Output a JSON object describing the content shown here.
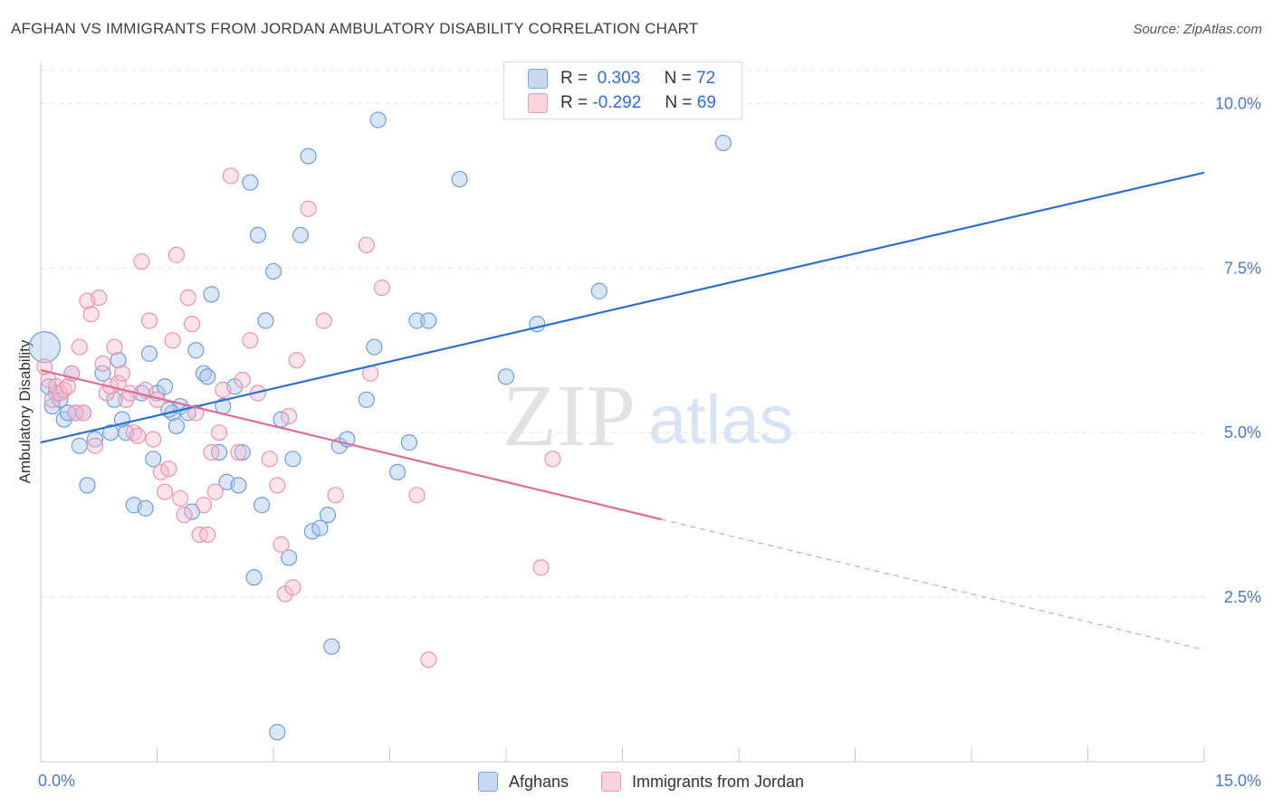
{
  "title": "AFGHAN VS IMMIGRANTS FROM JORDAN AMBULATORY DISABILITY CORRELATION CHART",
  "source": "Source: ZipAtlas.com",
  "watermark": {
    "zip": "ZIP",
    "atlas": "atlas"
  },
  "legend": {
    "r_label": "R =",
    "n_label": "N =",
    "rows": [
      {
        "r": "0.303",
        "n": "72",
        "color": "#aac8f0"
      },
      {
        "r": "-0.292",
        "n": "69",
        "color": "#f7b8cb"
      }
    ]
  },
  "bottom_legend": [
    "Afghans",
    "Immigrants from Jordan"
  ],
  "chart_data": {
    "type": "scatter",
    "title": "AFGHAN VS IMMIGRANTS FROM JORDAN AMBULATORY DISABILITY CORRELATION CHART",
    "xlabel": "",
    "ylabel": "Ambulatory Disability",
    "xlim": [
      0,
      15
    ],
    "ylim": [
      0,
      10.5
    ],
    "x_tick_labels": [
      "0.0%",
      "15.0%"
    ],
    "y_ticks": [
      2.5,
      5.0,
      7.5,
      10.0
    ],
    "y_tick_labels": [
      "2.5%",
      "5.0%",
      "7.5%",
      "10.0%"
    ],
    "grid": "horizontal dashed",
    "legend_position": "top-center",
    "colors": {
      "afghans": "#2d6ecf",
      "jordan": "#e06b97",
      "afghans_fill": "#aac8f0",
      "jordan_fill": "#f7b8cb"
    },
    "series": [
      {
        "name": "Afghans",
        "R": 0.303,
        "N": 72,
        "trend": {
          "x": [
            0,
            15
          ],
          "y": [
            4.85,
            8.95
          ],
          "dashed_from": null
        },
        "points": [
          [
            0.05,
            6.3
          ],
          [
            0.1,
            5.7
          ],
          [
            0.15,
            5.4
          ],
          [
            0.2,
            5.6
          ],
          [
            0.3,
            5.2
          ],
          [
            0.35,
            5.3
          ],
          [
            0.4,
            5.9
          ],
          [
            0.45,
            5.3
          ],
          [
            0.5,
            4.8
          ],
          [
            0.55,
            5.3
          ],
          [
            0.6,
            4.2
          ],
          [
            0.7,
            4.9
          ],
          [
            0.8,
            5.9
          ],
          [
            0.9,
            5.0
          ],
          [
            0.95,
            5.5
          ],
          [
            1.0,
            6.1
          ],
          [
            1.05,
            5.2
          ],
          [
            1.1,
            5.0
          ],
          [
            1.2,
            3.9
          ],
          [
            1.3,
            5.6
          ],
          [
            1.35,
            3.85
          ],
          [
            1.4,
            6.2
          ],
          [
            1.45,
            4.6
          ],
          [
            1.5,
            5.6
          ],
          [
            1.6,
            5.7
          ],
          [
            1.7,
            5.3
          ],
          [
            1.75,
            5.1
          ],
          [
            1.8,
            5.4
          ],
          [
            1.9,
            5.3
          ],
          [
            1.95,
            3.8
          ],
          [
            2.0,
            6.25
          ],
          [
            2.1,
            5.9
          ],
          [
            2.15,
            5.85
          ],
          [
            2.2,
            7.1
          ],
          [
            2.3,
            4.7
          ],
          [
            2.35,
            5.4
          ],
          [
            2.4,
            4.25
          ],
          [
            2.5,
            5.7
          ],
          [
            2.55,
            4.2
          ],
          [
            2.6,
            4.7
          ],
          [
            2.7,
            8.8
          ],
          [
            2.75,
            2.8
          ],
          [
            2.8,
            8.0
          ],
          [
            2.85,
            3.9
          ],
          [
            2.9,
            6.7
          ],
          [
            3.0,
            7.45
          ],
          [
            3.05,
            0.45
          ],
          [
            3.1,
            5.2
          ],
          [
            3.2,
            3.1
          ],
          [
            3.25,
            4.6
          ],
          [
            3.35,
            8.0
          ],
          [
            3.45,
            9.2
          ],
          [
            3.5,
            3.5
          ],
          [
            3.6,
            3.55
          ],
          [
            3.7,
            3.75
          ],
          [
            3.75,
            1.75
          ],
          [
            3.85,
            4.8
          ],
          [
            3.95,
            4.9
          ],
          [
            4.2,
            5.5
          ],
          [
            4.3,
            6.3
          ],
          [
            4.35,
            9.75
          ],
          [
            4.6,
            4.4
          ],
          [
            4.75,
            4.85
          ],
          [
            4.85,
            6.7
          ],
          [
            5.0,
            6.7
          ],
          [
            5.4,
            8.85
          ],
          [
            6.0,
            5.85
          ],
          [
            6.4,
            6.65
          ],
          [
            7.2,
            7.15
          ],
          [
            8.8,
            9.4
          ],
          [
            0.25,
            5.5
          ],
          [
            1.65,
            5.35
          ]
        ]
      },
      {
        "name": "Immigrants from Jordan",
        "R": -0.292,
        "N": 69,
        "trend": {
          "x": [
            0,
            15
          ],
          "y": [
            5.95,
            1.7
          ],
          "dashed_from": 8.0
        },
        "points": [
          [
            0.05,
            6.0
          ],
          [
            0.1,
            5.8
          ],
          [
            0.15,
            5.5
          ],
          [
            0.2,
            5.7
          ],
          [
            0.25,
            5.6
          ],
          [
            0.3,
            5.65
          ],
          [
            0.35,
            5.7
          ],
          [
            0.4,
            5.9
          ],
          [
            0.45,
            5.3
          ],
          [
            0.5,
            6.3
          ],
          [
            0.55,
            5.3
          ],
          [
            0.6,
            7.0
          ],
          [
            0.65,
            6.8
          ],
          [
            0.7,
            4.8
          ],
          [
            0.75,
            7.05
          ],
          [
            0.8,
            6.05
          ],
          [
            0.85,
            5.6
          ],
          [
            0.9,
            5.7
          ],
          [
            0.95,
            6.3
          ],
          [
            1.0,
            5.75
          ],
          [
            1.05,
            5.9
          ],
          [
            1.1,
            5.5
          ],
          [
            1.15,
            5.6
          ],
          [
            1.2,
            5.0
          ],
          [
            1.25,
            4.95
          ],
          [
            1.3,
            7.6
          ],
          [
            1.35,
            5.65
          ],
          [
            1.4,
            6.7
          ],
          [
            1.45,
            4.9
          ],
          [
            1.5,
            5.5
          ],
          [
            1.55,
            4.4
          ],
          [
            1.6,
            4.1
          ],
          [
            1.65,
            4.45
          ],
          [
            1.7,
            6.4
          ],
          [
            1.75,
            7.7
          ],
          [
            1.8,
            4.0
          ],
          [
            1.85,
            3.75
          ],
          [
            1.9,
            7.05
          ],
          [
            1.95,
            6.65
          ],
          [
            2.0,
            5.3
          ],
          [
            2.05,
            3.45
          ],
          [
            2.1,
            3.9
          ],
          [
            2.15,
            3.45
          ],
          [
            2.2,
            4.7
          ],
          [
            2.25,
            4.1
          ],
          [
            2.3,
            5.0
          ],
          [
            2.35,
            5.65
          ],
          [
            2.45,
            8.9
          ],
          [
            2.55,
            4.7
          ],
          [
            2.6,
            5.8
          ],
          [
            2.7,
            6.4
          ],
          [
            2.8,
            5.6
          ],
          [
            2.95,
            4.6
          ],
          [
            3.05,
            4.2
          ],
          [
            3.1,
            3.3
          ],
          [
            3.15,
            2.55
          ],
          [
            3.2,
            5.25
          ],
          [
            3.25,
            2.65
          ],
          [
            3.3,
            6.1
          ],
          [
            3.45,
            8.4
          ],
          [
            3.65,
            6.7
          ],
          [
            3.8,
            4.05
          ],
          [
            4.2,
            7.85
          ],
          [
            4.25,
            5.9
          ],
          [
            4.4,
            7.2
          ],
          [
            4.85,
            4.05
          ],
          [
            5.0,
            1.55
          ],
          [
            6.45,
            2.95
          ],
          [
            6.6,
            4.6
          ]
        ]
      }
    ]
  }
}
